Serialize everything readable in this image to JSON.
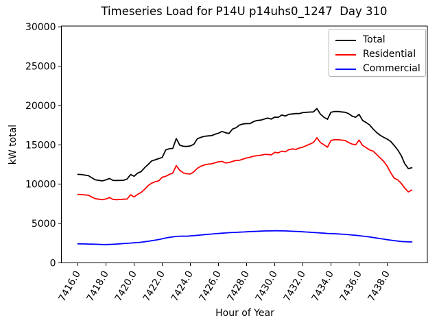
{
  "figure": {
    "background": "#ffffff",
    "axis_color": "#000000",
    "legend_border_color": "#b0b0b0"
  },
  "chart_data": {
    "type": "line",
    "title": "Timeseries Load for P14U p14uhs0_1247  Day 310",
    "xlabel": "Hour of Year",
    "ylabel": "kW total",
    "xlim": [
      7414.83,
      7440.85
    ],
    "ylim": [
      0,
      30000
    ],
    "grid": false,
    "legend_position": "upper right",
    "x_ticks": [
      7416,
      7418,
      7420,
      7422,
      7424,
      7426,
      7428,
      7430,
      7432,
      7434,
      7436,
      7438
    ],
    "x_tick_labels": [
      "7416.0",
      "7418.0",
      "7420.0",
      "7422.0",
      "7424.0",
      "7426.0",
      "7428.0",
      "7430.0",
      "7432.0",
      "7434.0",
      "7436.0",
      "7438.0"
    ],
    "y_ticks": [
      0,
      5000,
      10000,
      15000,
      20000,
      25000,
      30000
    ],
    "y_tick_labels": [
      "0",
      "5000",
      "10000",
      "15000",
      "20000",
      "25000",
      "30000"
    ],
    "x_start": 7416.0,
    "x_step": 0.25,
    "series": [
      {
        "name": "Total",
        "color": "#000000",
        "values": [
          11250,
          11230,
          11150,
          11080,
          10800,
          10550,
          10480,
          10420,
          10550,
          10720,
          10480,
          10470,
          10480,
          10500,
          10650,
          11230,
          11000,
          11400,
          11600,
          12100,
          12500,
          12950,
          13100,
          13250,
          13400,
          14350,
          14500,
          14550,
          15800,
          14950,
          14820,
          14790,
          14860,
          15080,
          15780,
          15950,
          16080,
          16130,
          16170,
          16340,
          16480,
          16700,
          16540,
          16450,
          17000,
          17180,
          17520,
          17660,
          17700,
          17700,
          17960,
          18090,
          18140,
          18270,
          18400,
          18270,
          18530,
          18490,
          18790,
          18660,
          18880,
          18920,
          18970,
          18970,
          19100,
          19140,
          19160,
          19180,
          19620,
          18900,
          18500,
          18250,
          19150,
          19230,
          19230,
          19180,
          19140,
          18970,
          18650,
          18500,
          18880,
          18100,
          17830,
          17520,
          17000,
          16560,
          16210,
          15950,
          15730,
          15430,
          14900,
          14350,
          13620,
          12600,
          11980,
          12080
        ]
      },
      {
        "name": "Residential",
        "color": "#ff0000",
        "values": [
          8700,
          8680,
          8630,
          8600,
          8350,
          8150,
          8080,
          8020,
          8120,
          8300,
          8060,
          8030,
          8060,
          8080,
          8110,
          8650,
          8380,
          8700,
          8950,
          9350,
          9830,
          10120,
          10310,
          10420,
          10880,
          11000,
          11230,
          11430,
          12350,
          11760,
          11430,
          11320,
          11290,
          11580,
          12020,
          12280,
          12450,
          12540,
          12590,
          12720,
          12850,
          12890,
          12700,
          12750,
          12890,
          13020,
          13040,
          13200,
          13330,
          13420,
          13550,
          13620,
          13680,
          13770,
          13780,
          13720,
          14050,
          13980,
          14200,
          14110,
          14380,
          14490,
          14420,
          14600,
          14700,
          14900,
          15100,
          15300,
          15900,
          15300,
          15000,
          14700,
          15550,
          15650,
          15650,
          15600,
          15550,
          15300,
          15100,
          15000,
          15600,
          14930,
          14640,
          14350,
          14200,
          13770,
          13330,
          12890,
          12300,
          11450,
          10750,
          10550,
          10100,
          9500,
          9020,
          9250
        ]
      },
      {
        "name": "Commercial",
        "color": "#0000ff",
        "values": [
          2420,
          2410,
          2400,
          2390,
          2380,
          2360,
          2350,
          2330,
          2330,
          2340,
          2360,
          2390,
          2420,
          2450,
          2480,
          2520,
          2550,
          2580,
          2620,
          2680,
          2740,
          2810,
          2880,
          2960,
          3060,
          3160,
          3240,
          3300,
          3360,
          3390,
          3400,
          3390,
          3420,
          3450,
          3500,
          3540,
          3590,
          3630,
          3660,
          3700,
          3740,
          3770,
          3800,
          3830,
          3860,
          3880,
          3900,
          3920,
          3950,
          3970,
          3990,
          4010,
          4030,
          4050,
          4060,
          4070,
          4080,
          4080,
          4070,
          4060,
          4040,
          4020,
          4000,
          3980,
          3950,
          3920,
          3890,
          3860,
          3830,
          3800,
          3770,
          3740,
          3720,
          3700,
          3680,
          3650,
          3620,
          3580,
          3540,
          3500,
          3450,
          3400,
          3350,
          3290,
          3220,
          3150,
          3080,
          3010,
          2940,
          2880,
          2820,
          2770,
          2720,
          2690,
          2670,
          2660
        ]
      }
    ]
  }
}
